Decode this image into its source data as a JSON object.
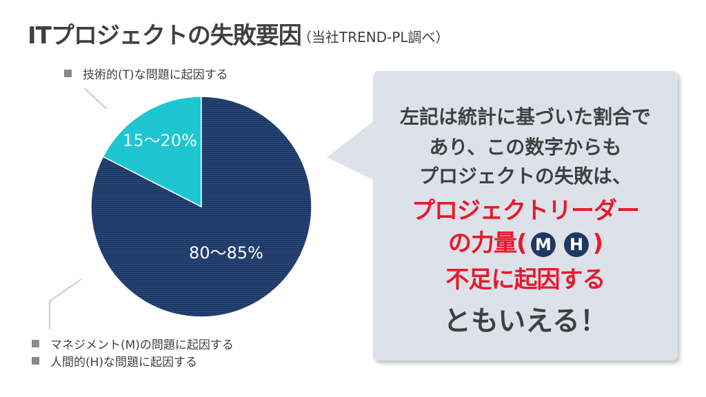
{
  "title": "ITプロジェクトの失敗要因",
  "subtitle": "（当社TREND-PL調べ）",
  "legend": {
    "technical": "技術的(T)な問題に起因する",
    "management": "マネジメント(M)の問題に起因する",
    "human": "人間的(H)な問題に起因する"
  },
  "pie": {
    "slices": [
      {
        "label": "15～20%",
        "value": 17.5,
        "color": "#1ec6d2"
      },
      {
        "label": "80～85%",
        "value": 82.5,
        "color": "#1f3864"
      }
    ]
  },
  "callout": {
    "line1": "左記は統計に基づいた割合で",
    "line2": "あり、この数字からも",
    "line3": "プロジェクトの失敗は、",
    "red1": "プロジェクトリーダー",
    "red2_prefix": "の力量(",
    "badge_m": "M",
    "badge_h": "H",
    "red2_suffix": ")",
    "red3": "不足に起因する",
    "final": "ともいえる！"
  }
}
